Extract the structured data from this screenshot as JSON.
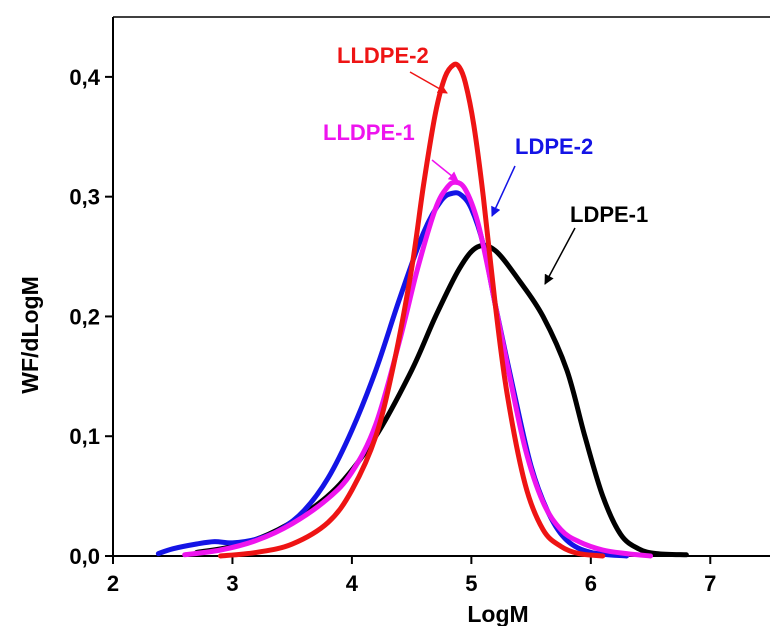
{
  "chart_data": {
    "type": "line",
    "xlabel": "LogM",
    "ylabel": "WF/dLogM",
    "xlim": [
      2,
      7.5
    ],
    "ylim": [
      0,
      0.45
    ],
    "xticks": [
      "2",
      "3",
      "4",
      "5",
      "6",
      "7"
    ],
    "yticks": [
      "0,0",
      "0,1",
      "0,2",
      "0,3",
      "0,4"
    ],
    "grid": false,
    "legend": "inline labels with arrows",
    "series": [
      {
        "name": "LDPE-1",
        "color": "#000000",
        "x": [
          2.7,
          3.0,
          3.3,
          3.6,
          3.9,
          4.2,
          4.5,
          4.7,
          4.9,
          5.05,
          5.2,
          5.4,
          5.6,
          5.8,
          5.95,
          6.1,
          6.25,
          6.4,
          6.55,
          6.8
        ],
        "y": [
          0.003,
          0.008,
          0.018,
          0.035,
          0.06,
          0.1,
          0.155,
          0.2,
          0.24,
          0.258,
          0.255,
          0.23,
          0.2,
          0.155,
          0.1,
          0.05,
          0.018,
          0.006,
          0.002,
          0.001
        ]
      },
      {
        "name": "LDPE-2",
        "color": "#1414e6",
        "x": [
          2.38,
          2.5,
          2.7,
          2.85,
          3.0,
          3.2,
          3.4,
          3.6,
          3.8,
          4.0,
          4.2,
          4.4,
          4.6,
          4.75,
          4.85,
          4.92,
          5.0,
          5.1,
          5.2,
          5.35,
          5.5,
          5.65,
          5.8,
          6.0,
          6.3
        ],
        "y": [
          0.002,
          0.006,
          0.01,
          0.012,
          0.011,
          0.014,
          0.022,
          0.038,
          0.065,
          0.105,
          0.155,
          0.215,
          0.27,
          0.297,
          0.303,
          0.301,
          0.29,
          0.26,
          0.21,
          0.14,
          0.075,
          0.035,
          0.013,
          0.003,
          0.0
        ]
      },
      {
        "name": "LLDPE-1",
        "color": "#ee14ee",
        "x": [
          2.6,
          2.9,
          3.2,
          3.5,
          3.8,
          4.0,
          4.2,
          4.4,
          4.55,
          4.7,
          4.8,
          4.87,
          4.95,
          5.05,
          5.15,
          5.3,
          5.45,
          5.6,
          5.75,
          5.9,
          6.1,
          6.3,
          6.5
        ],
        "y": [
          0.001,
          0.005,
          0.013,
          0.027,
          0.048,
          0.07,
          0.11,
          0.18,
          0.24,
          0.29,
          0.308,
          0.312,
          0.306,
          0.28,
          0.235,
          0.16,
          0.09,
          0.045,
          0.022,
          0.012,
          0.005,
          0.002,
          0.0
        ]
      },
      {
        "name": "LLDPE-2",
        "color": "#ee1414",
        "x": [
          2.9,
          3.2,
          3.5,
          3.8,
          4.0,
          4.2,
          4.35,
          4.5,
          4.6,
          4.7,
          4.78,
          4.85,
          4.9,
          4.95,
          5.02,
          5.1,
          5.2,
          5.3,
          5.45,
          5.6,
          5.75,
          5.9,
          6.1
        ],
        "y": [
          0.0,
          0.003,
          0.01,
          0.028,
          0.055,
          0.1,
          0.16,
          0.24,
          0.31,
          0.37,
          0.4,
          0.41,
          0.408,
          0.395,
          0.36,
          0.3,
          0.21,
          0.135,
          0.06,
          0.022,
          0.008,
          0.002,
          0.0
        ]
      }
    ],
    "annotations": [
      {
        "series": "LLDPE-2",
        "text": "LLDPE-2",
        "color": "#ee1414"
      },
      {
        "series": "LLDPE-1",
        "text": "LLDPE-1",
        "color": "#ee14ee"
      },
      {
        "series": "LDPE-2",
        "text": "LDPE-2",
        "color": "#1414e6"
      },
      {
        "series": "LDPE-1",
        "text": "LDPE-1",
        "color": "#000000"
      }
    ]
  }
}
